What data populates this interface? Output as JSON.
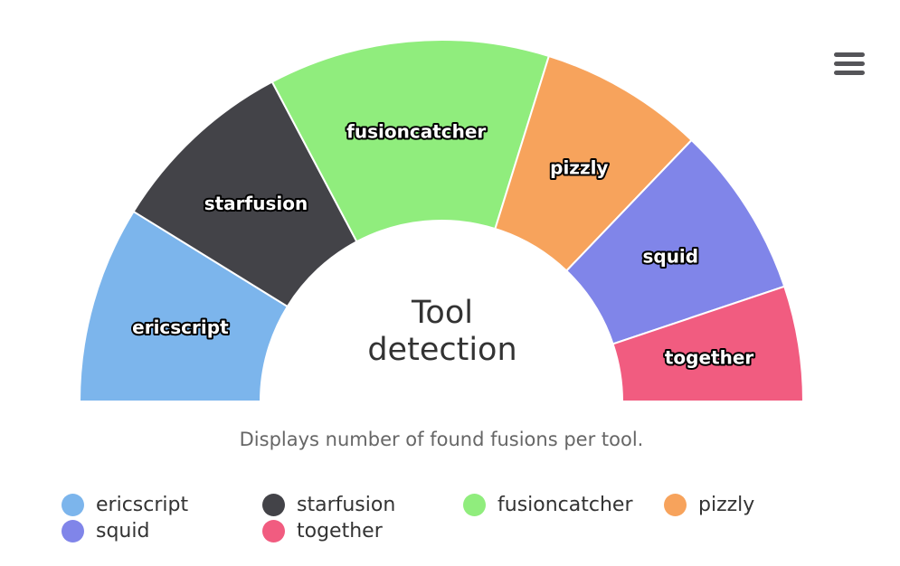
{
  "chart_data": {
    "type": "pie",
    "variant": "semi-donut",
    "title": "Tool detection",
    "subtitle": "Displays number of found fusions per tool.",
    "legend_position": "bottom",
    "slices": [
      {
        "name": "ericscript",
        "share": 0.176,
        "color": "#7cb5ec"
      },
      {
        "name": "starfusion",
        "share": 0.169,
        "color": "#434348"
      },
      {
        "name": "fusioncatcher",
        "share": 0.251,
        "color": "#90ed7d"
      },
      {
        "name": "pizzly",
        "share": 0.147,
        "color": "#f7a35c"
      },
      {
        "name": "squid",
        "share": 0.154,
        "color": "#8085e9"
      },
      {
        "name": "together",
        "share": 0.103,
        "color": "#f15c80"
      }
    ]
  },
  "menu": {
    "icon": "hamburger-icon"
  }
}
